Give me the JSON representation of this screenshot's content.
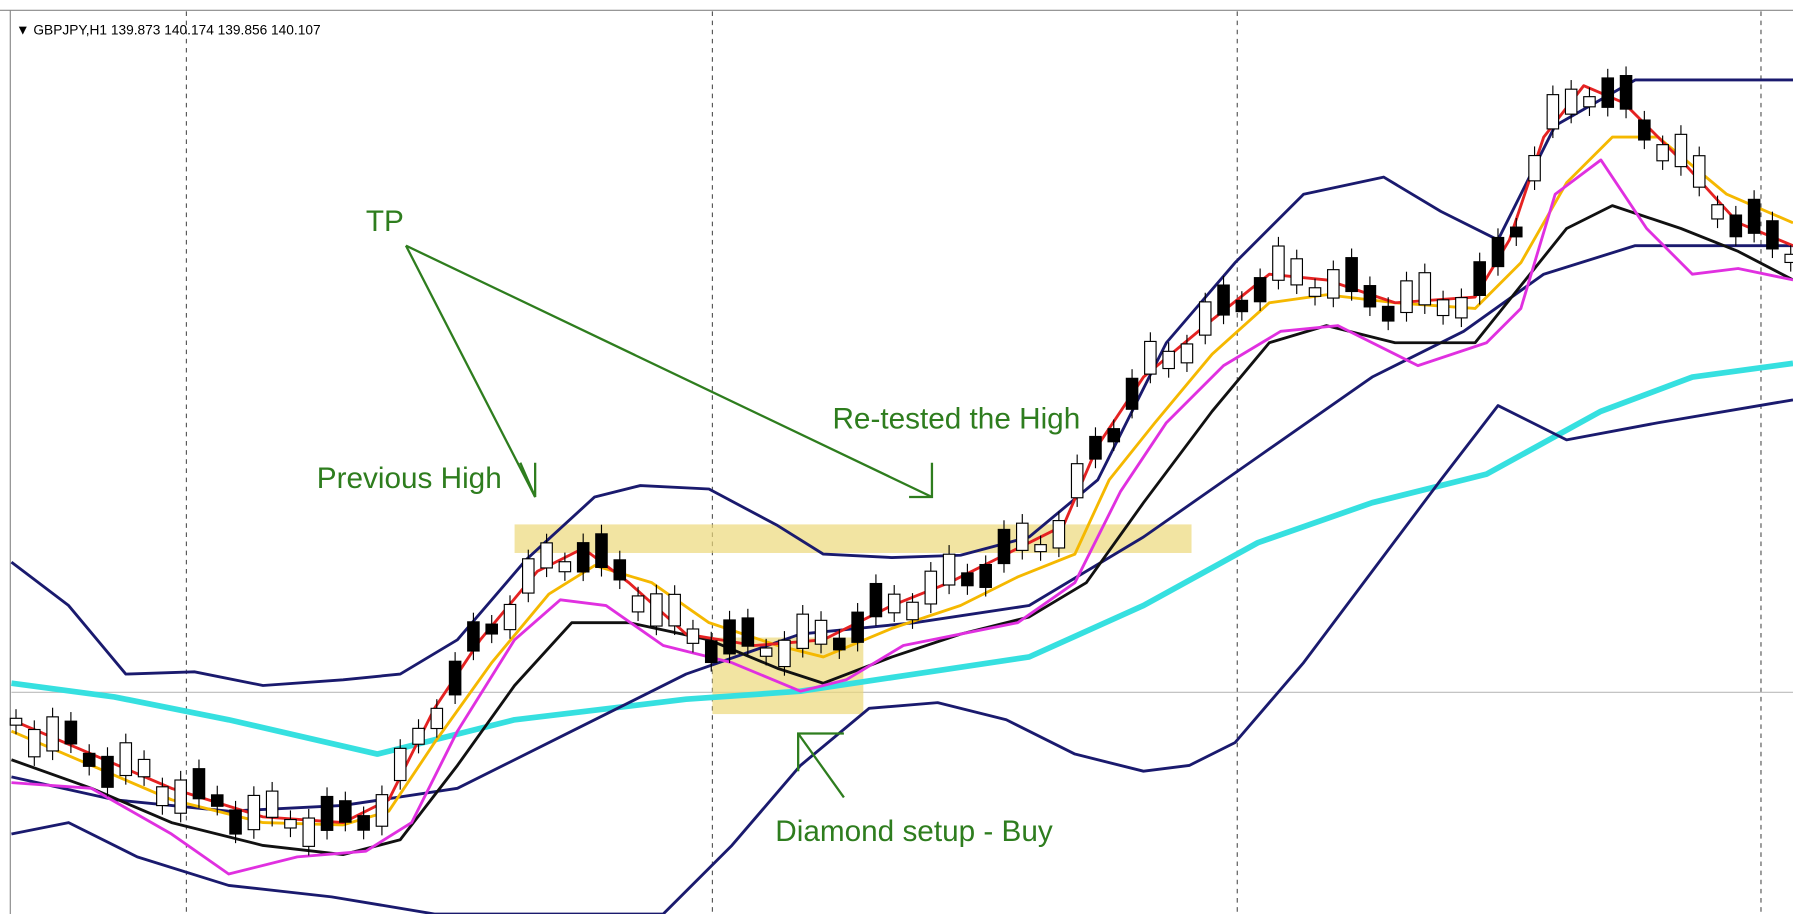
{
  "header": {
    "symbol": "GBPJPY,H1",
    "open": "139.873",
    "high": "140.174",
    "low": "139.856",
    "close": "140.107"
  },
  "annotations": {
    "tp": "TP",
    "previous_high": "Previous High",
    "retested": "Re-tested the High",
    "diamond": "Diamond setup - Buy"
  }
}
